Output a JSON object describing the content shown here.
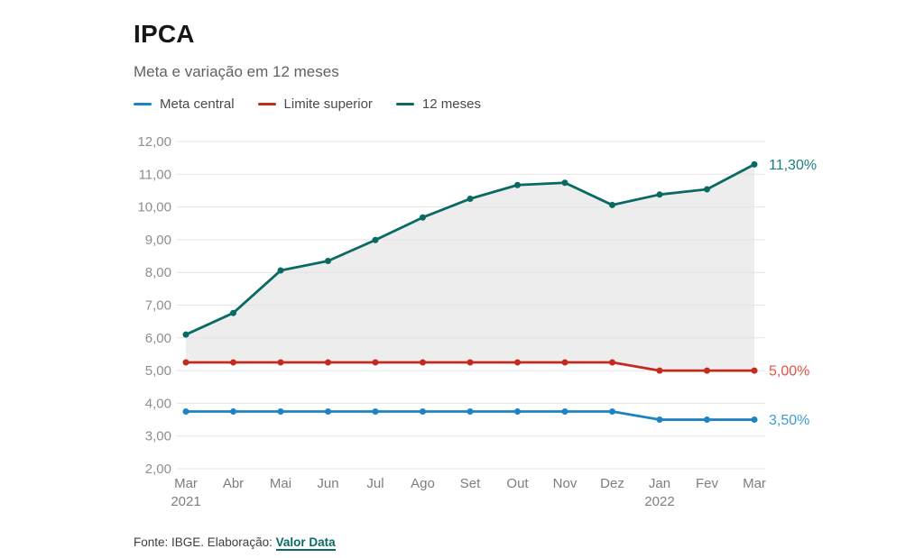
{
  "header": {
    "title": "IPCA",
    "subtitle": "Meta e variação em 12 meses"
  },
  "legend": {
    "items": [
      {
        "label": "Meta central",
        "color": "#1e83c2"
      },
      {
        "label": "Limite superior",
        "color": "#c32b20"
      },
      {
        "label": "12 meses",
        "color": "#0a6a63"
      }
    ]
  },
  "chart_data": {
    "type": "line",
    "title": "IPCA",
    "subtitle": "Meta e variação em 12 meses",
    "categories": [
      "Mar",
      "Abr",
      "Mai",
      "Jun",
      "Jul",
      "Ago",
      "Set",
      "Out",
      "Nov",
      "Dez",
      "Jan",
      "Fev",
      "Mar"
    ],
    "year_labels": [
      {
        "index": 0,
        "label": "2021"
      },
      {
        "index": 10,
        "label": "2022"
      }
    ],
    "series": [
      {
        "name": "Meta central",
        "color": "#1e83c2",
        "values": [
          3.75,
          3.75,
          3.75,
          3.75,
          3.75,
          3.75,
          3.75,
          3.75,
          3.75,
          3.75,
          3.5,
          3.5,
          3.5
        ],
        "end_label": "3,50%",
        "end_label_color": "#3e9cd6"
      },
      {
        "name": "Limite superior",
        "color": "#c32b20",
        "values": [
          5.25,
          5.25,
          5.25,
          5.25,
          5.25,
          5.25,
          5.25,
          5.25,
          5.25,
          5.25,
          5.0,
          5.0,
          5.0
        ],
        "end_label": "5,00%",
        "end_label_color": "#e05446"
      },
      {
        "name": "12 meses",
        "color": "#0a6a63",
        "values": [
          6.1,
          6.76,
          8.06,
          8.35,
          8.99,
          9.68,
          10.25,
          10.67,
          10.74,
          10.06,
          10.38,
          10.54,
          11.3
        ],
        "end_label": "11,30%",
        "end_label_color": "#1b7e80"
      }
    ],
    "fill_between": {
      "upper": "12 meses",
      "lower": "Limite superior",
      "color": "#ededed"
    },
    "yticks": [
      {
        "value": 2,
        "label": "2,00"
      },
      {
        "value": 3,
        "label": "3,00"
      },
      {
        "value": 4,
        "label": "4,00"
      },
      {
        "value": 5,
        "label": "5,00"
      },
      {
        "value": 6,
        "label": "6,00"
      },
      {
        "value": 7,
        "label": "7,00"
      },
      {
        "value": 8,
        "label": "8,00"
      },
      {
        "value": 9,
        "label": "9,00"
      },
      {
        "value": 10,
        "label": "10,00"
      },
      {
        "value": 11,
        "label": "11,00"
      },
      {
        "value": 12,
        "label": "12,00"
      }
    ],
    "ylim": [
      2,
      12
    ],
    "grid": true,
    "legend_position": "top",
    "xlabel": "",
    "ylabel": ""
  },
  "footer": {
    "source_text": "Fonte: IBGE. Elaboração: ",
    "link_label": "Valor Data"
  }
}
